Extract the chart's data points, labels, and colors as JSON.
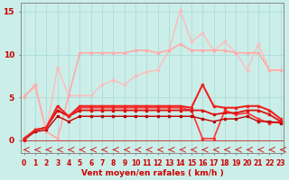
{
  "xlabel": "Vent moyen/en rafales ( km/h )",
  "background_color": "#cceee8",
  "grid_color": "#aadddd",
  "line_light1_y": [
    5.0,
    6.5,
    1.0,
    0.2,
    5.2,
    10.2,
    10.2,
    10.2,
    10.2,
    10.2,
    10.5,
    10.5,
    10.2,
    10.5,
    11.2,
    10.5,
    10.5,
    10.5,
    10.5,
    10.2,
    10.2,
    10.2,
    8.2,
    8.2
  ],
  "line_light1_color": "#ffaaaa",
  "line_light1_lw": 1.2,
  "line_light2_y": [
    5.2,
    6.2,
    1.0,
    8.5,
    5.2,
    5.2,
    5.2,
    6.5,
    7.0,
    6.5,
    7.5,
    8.0,
    8.2,
    10.5,
    15.2,
    11.5,
    12.5,
    10.5,
    11.5,
    10.2,
    8.2,
    11.2,
    8.2,
    8.2
  ],
  "line_light2_color": "#ffbbbb",
  "line_light2_lw": 1.0,
  "line_med1_y": [
    0.2,
    1.2,
    1.5,
    4.0,
    2.8,
    4.0,
    4.0,
    4.0,
    4.0,
    4.0,
    4.0,
    4.0,
    4.0,
    4.0,
    4.0,
    3.8,
    6.5,
    4.0,
    3.8,
    3.8,
    4.0,
    4.0,
    3.5,
    2.5
  ],
  "line_med1_color": "#ee2222",
  "line_med1_lw": 1.5,
  "line_med2_y": [
    0.2,
    1.2,
    1.5,
    3.5,
    2.8,
    3.5,
    3.5,
    3.5,
    3.5,
    3.5,
    3.5,
    3.5,
    3.5,
    3.5,
    3.5,
    3.5,
    3.5,
    3.0,
    3.2,
    3.2,
    3.5,
    3.5,
    3.0,
    2.2
  ],
  "line_med2_color": "#dd1111",
  "line_med2_lw": 1.3,
  "line_dark1_y": [
    0.1,
    1.0,
    1.2,
    2.8,
    2.2,
    2.8,
    2.8,
    2.8,
    2.8,
    2.8,
    2.8,
    2.8,
    2.8,
    2.8,
    2.8,
    2.8,
    2.5,
    2.2,
    2.5,
    2.5,
    2.8,
    2.2,
    2.2,
    2.0
  ],
  "line_dark1_color": "#bb0000",
  "line_dark1_lw": 1.0,
  "line_dark2_y": [
    0.0,
    1.2,
    1.5,
    3.5,
    2.8,
    3.8,
    3.8,
    3.8,
    3.8,
    3.8,
    3.8,
    3.8,
    3.8,
    3.8,
    3.8,
    3.5,
    0.2,
    0.2,
    3.5,
    3.0,
    3.2,
    2.5,
    2.0,
    2.2
  ],
  "line_dark2_color": "#ff3333",
  "line_dark2_lw": 1.2,
  "yticks": [
    0,
    5,
    10,
    15
  ],
  "ylim": [
    -1.5,
    16
  ],
  "xlim": [
    -0.3,
    23.3
  ],
  "xticks": [
    0,
    1,
    2,
    3,
    4,
    5,
    6,
    7,
    8,
    9,
    10,
    11,
    12,
    13,
    14,
    15,
    16,
    17,
    18,
    19,
    20,
    21,
    22,
    23
  ],
  "tick_fontsize": 5.5,
  "xlabel_fontsize": 6.5,
  "tick_color": "#cc0000",
  "spine_color": "#888888",
  "marker": "s",
  "marker_size": 2.0,
  "arrow_color": "#cc2222"
}
